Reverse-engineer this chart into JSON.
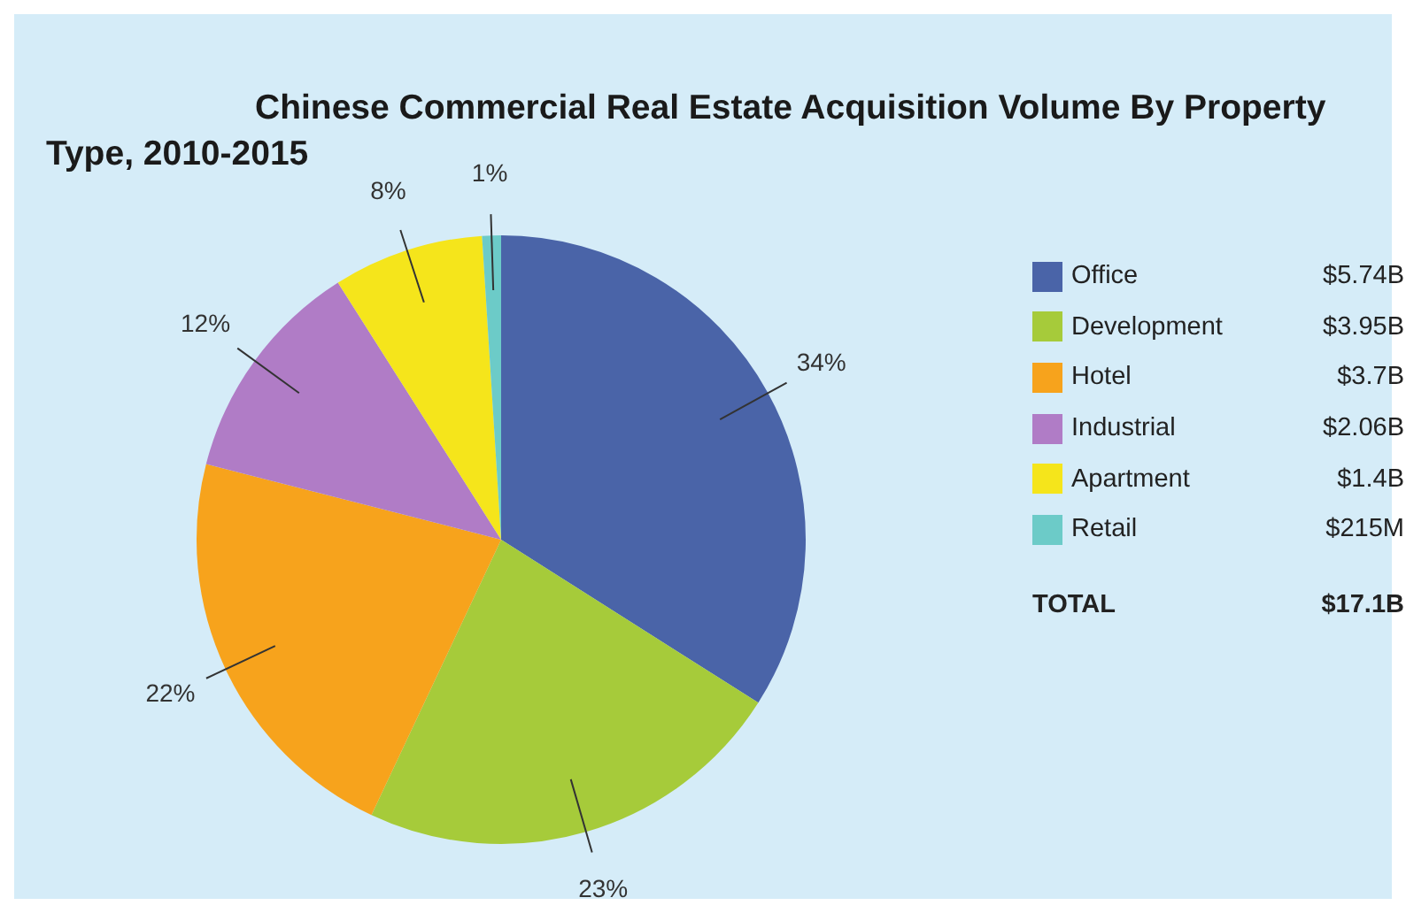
{
  "chart_data": {
    "type": "pie",
    "title": "Chinese Commercial Real Estate Acquisition Volume By Property Type, 2010-2015",
    "categories": [
      "Office",
      "Development",
      "Hotel",
      "Industrial",
      "Apartment",
      "Retail"
    ],
    "values": [
      34,
      23,
      22,
      12,
      8,
      1
    ],
    "colors": [
      "#4a64a8",
      "#a6cb3a",
      "#f7a31c",
      "#b07cc6",
      "#f5e51b",
      "#6ccbc8"
    ],
    "value_labels": [
      "34%",
      "23%",
      "22%",
      "12%",
      "8%",
      "1%"
    ],
    "annotations": [
      "$5.74B",
      "$3.95B",
      "$3.7B",
      "$2.06B",
      "$1.4B",
      "$215M",
      "TOTAL",
      "$17.1B"
    ],
    "legend": "right"
  }
}
